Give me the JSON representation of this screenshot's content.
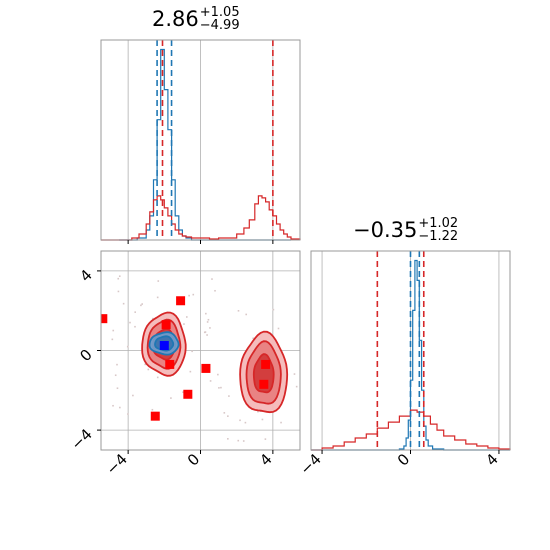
{
  "colors": {
    "blue": "#1f77b4",
    "red": "#d62728",
    "marker": "#ff0000",
    "marker_blue": "#0000ff",
    "grid": "#b0b0b0"
  },
  "titles": {
    "param1": {
      "value": "2.86",
      "upper": "+1.05",
      "lower": "−4.99"
    },
    "param2": {
      "value": "−0.35",
      "upper": "+1.02",
      "lower": "−1.22"
    }
  },
  "chart_data": [
    {
      "panel": "marginal-param1",
      "type": "line",
      "title": "2.86 +1.05 -4.99",
      "xlim": [
        -5.5,
        5.5
      ],
      "grid": true,
      "series": [
        {
          "color": "blue",
          "x": [
            -4.5,
            -4.0,
            -3.5,
            -3.0,
            -2.8,
            -2.6,
            -2.4,
            -2.2,
            -2.0,
            -1.8,
            -1.6,
            -1.4,
            -1.2,
            -1.0,
            -0.8,
            -0.5,
            0.0,
            1.0,
            2.0,
            3.0,
            4.0,
            5.0
          ],
          "y": [
            0,
            0,
            0.01,
            0.05,
            0.12,
            0.3,
            0.6,
            0.95,
            0.75,
            0.55,
            0.3,
            0.12,
            0.05,
            0.02,
            0.01,
            0,
            0,
            0,
            0,
            0,
            0,
            0
          ]
        },
        {
          "color": "red",
          "x": [
            -5.5,
            -4.5,
            -3.8,
            -3.4,
            -3.0,
            -2.8,
            -2.6,
            -2.4,
            -2.2,
            -2.0,
            -1.8,
            -1.6,
            -1.4,
            -1.2,
            -1.0,
            -0.8,
            -0.5,
            0.0,
            0.5,
            1.0,
            1.5,
            2.0,
            2.4,
            2.7,
            3.0,
            3.2,
            3.4,
            3.6,
            3.8,
            4.0,
            4.2,
            4.4,
            4.6,
            4.8,
            5.0,
            5.5
          ],
          "y": [
            0,
            0,
            0.01,
            0.03,
            0.08,
            0.14,
            0.2,
            0.22,
            0.2,
            0.16,
            0.12,
            0.08,
            0.05,
            0.03,
            0.02,
            0.015,
            0.01,
            0.01,
            0.005,
            0.01,
            0.01,
            0.03,
            0.06,
            0.1,
            0.18,
            0.22,
            0.21,
            0.19,
            0.15,
            0.12,
            0.08,
            0.05,
            0.03,
            0.015,
            0.005,
            0
          ]
        }
      ],
      "vlines": [
        {
          "x": -2.4,
          "color": "blue"
        },
        {
          "x": -1.6,
          "color": "blue"
        },
        {
          "x": -2.1,
          "color": "red"
        },
        {
          "x": 4.0,
          "color": "red"
        }
      ]
    },
    {
      "panel": "joint",
      "type": "scatter",
      "xlim": [
        -5.5,
        5.5
      ],
      "ylim": [
        -5.0,
        5.0
      ],
      "xticks": [
        -4,
        0,
        4
      ],
      "yticks": [
        -4,
        0,
        4
      ],
      "xticklabels": [
        "−4",
        "0",
        "4"
      ],
      "yticklabels": [
        "−4",
        "0",
        "4"
      ],
      "grid": true,
      "markers": [
        {
          "x": -5.4,
          "y": 1.6,
          "color": "marker"
        },
        {
          "x": -1.1,
          "y": 2.5,
          "color": "marker"
        },
        {
          "x": -1.9,
          "y": 1.3,
          "color": "marker"
        },
        {
          "x": -1.7,
          "y": -0.7,
          "color": "marker"
        },
        {
          "x": 0.3,
          "y": -0.9,
          "color": "marker"
        },
        {
          "x": -0.7,
          "y": -2.2,
          "color": "marker"
        },
        {
          "x": -2.5,
          "y": -3.3,
          "color": "marker"
        },
        {
          "x": 3.6,
          "y": -0.7,
          "color": "marker"
        },
        {
          "x": 3.5,
          "y": -1.7,
          "color": "marker"
        },
        {
          "x": -2.0,
          "y": 0.25,
          "color": "marker_blue"
        }
      ],
      "contours": [
        {
          "cx": -2.0,
          "cy": 0.3,
          "rx": 1.2,
          "ry": 1.55,
          "color": "red",
          "level": 3
        },
        {
          "cx": -2.0,
          "cy": 0.3,
          "rx": 0.9,
          "ry": 1.2,
          "color": "red",
          "level": 2
        },
        {
          "cx": -2.0,
          "cy": 0.3,
          "rx": 0.6,
          "ry": 0.75,
          "color": "red",
          "level": 1
        },
        {
          "cx": 3.5,
          "cy": -1.2,
          "rx": 1.3,
          "ry": 2.0,
          "color": "red",
          "level": 3
        },
        {
          "cx": 3.5,
          "cy": -1.2,
          "rx": 0.95,
          "ry": 1.55,
          "color": "red",
          "level": 2
        },
        {
          "cx": 3.5,
          "cy": -1.2,
          "rx": 0.55,
          "ry": 0.95,
          "color": "red",
          "level": 1
        },
        {
          "cx": -2.0,
          "cy": 0.35,
          "rx": 0.8,
          "ry": 0.55,
          "color": "blue",
          "level": 2
        },
        {
          "cx": -2.0,
          "cy": 0.35,
          "rx": 0.5,
          "ry": 0.35,
          "color": "blue",
          "level": 1
        }
      ]
    },
    {
      "panel": "marginal-param2",
      "type": "line",
      "title": "-0.35 +1.02 -1.22",
      "xlim": [
        -4.5,
        4.5
      ],
      "xticks": [
        -4,
        0,
        4
      ],
      "xticklabels": [
        "−4",
        "0",
        "4"
      ],
      "grid": true,
      "series": [
        {
          "color": "blue",
          "x": [
            -4.5,
            -1.0,
            -0.5,
            -0.3,
            -0.2,
            -0.1,
            0.0,
            0.1,
            0.2,
            0.3,
            0.4,
            0.5,
            0.6,
            0.7,
            0.8,
            1.0,
            1.5,
            4.5
          ],
          "y": [
            0,
            0,
            0.005,
            0.02,
            0.06,
            0.15,
            0.35,
            0.7,
            0.95,
            0.85,
            0.55,
            0.3,
            0.12,
            0.05,
            0.02,
            0.005,
            0,
            0
          ]
        },
        {
          "color": "red",
          "x": [
            -4.5,
            -4.0,
            -3.5,
            -3.0,
            -2.5,
            -2.0,
            -1.5,
            -1.0,
            -0.5,
            0.0,
            0.3,
            0.6,
            0.9,
            1.2,
            1.5,
            2.0,
            2.5,
            3.0,
            3.5,
            4.0,
            4.5
          ],
          "y": [
            0,
            0.01,
            0.02,
            0.04,
            0.06,
            0.08,
            0.11,
            0.14,
            0.17,
            0.2,
            0.19,
            0.17,
            0.13,
            0.1,
            0.07,
            0.05,
            0.03,
            0.02,
            0.01,
            0.005,
            0
          ]
        }
      ],
      "vlines": [
        {
          "x": -1.5,
          "color": "red"
        },
        {
          "x": 0.6,
          "color": "red"
        },
        {
          "x": 0.0,
          "color": "blue"
        },
        {
          "x": 0.4,
          "color": "blue"
        }
      ]
    }
  ]
}
